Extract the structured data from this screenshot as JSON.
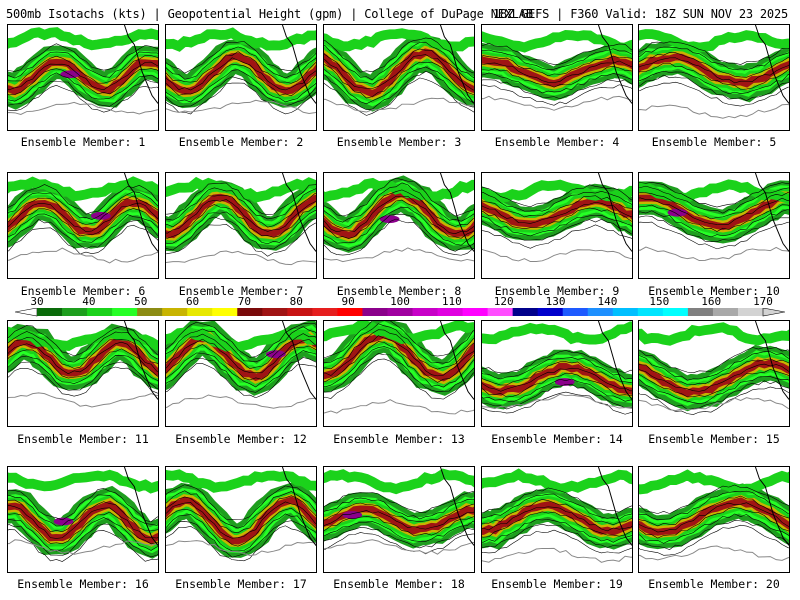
{
  "header": {
    "left": "500mb Isotachs (kts) | Geopotential Height (gpm) | College of DuPage NEXLAB",
    "right": "18Z GEFS | F360 Valid: 18Z SUN NOV 23 2025"
  },
  "members": [
    {
      "label": "Ensemble Member: 1"
    },
    {
      "label": "Ensemble Member: 2"
    },
    {
      "label": "Ensemble Member: 3"
    },
    {
      "label": "Ensemble Member: 4"
    },
    {
      "label": "Ensemble Member: 5"
    },
    {
      "label": "Ensemble Member: 6"
    },
    {
      "label": "Ensemble Member: 7"
    },
    {
      "label": "Ensemble Member: 8"
    },
    {
      "label": "Ensemble Member: 9"
    },
    {
      "label": "Ensemble Member: 10"
    },
    {
      "label": "Ensemble Member: 11"
    },
    {
      "label": "Ensemble Member: 12"
    },
    {
      "label": "Ensemble Member: 13"
    },
    {
      "label": "Ensemble Member: 14"
    },
    {
      "label": "Ensemble Member: 15"
    },
    {
      "label": "Ensemble Member: 16"
    },
    {
      "label": "Ensemble Member: 17"
    },
    {
      "label": "Ensemble Member: 18"
    },
    {
      "label": "Ensemble Member: 19"
    },
    {
      "label": "Ensemble Member: 20"
    }
  ],
  "colorbar": {
    "units": "kts",
    "ticks": [
      "30",
      "40",
      "50",
      "60",
      "70",
      "80",
      "90",
      "100",
      "110",
      "120",
      "130",
      "140",
      "150",
      "160",
      "170"
    ],
    "colors": [
      "#0a6b0a",
      "#1e9e1e",
      "#1bd21b",
      "#26ff26",
      "#8c8c14",
      "#c8b400",
      "#e8e800",
      "#ffff00",
      "#7a0a0a",
      "#a01414",
      "#c81414",
      "#e61e1e",
      "#ff0000",
      "#8b008b",
      "#a000a0",
      "#c800c8",
      "#e000e0",
      "#ff00ff",
      "#ff4dff",
      "#00008b",
      "#0000cd",
      "#1e5aff",
      "#1e90ff",
      "#00bfff",
      "#00e5ff",
      "#00ffff",
      "#808080",
      "#a9a9a9",
      "#d3d3d3"
    ]
  }
}
